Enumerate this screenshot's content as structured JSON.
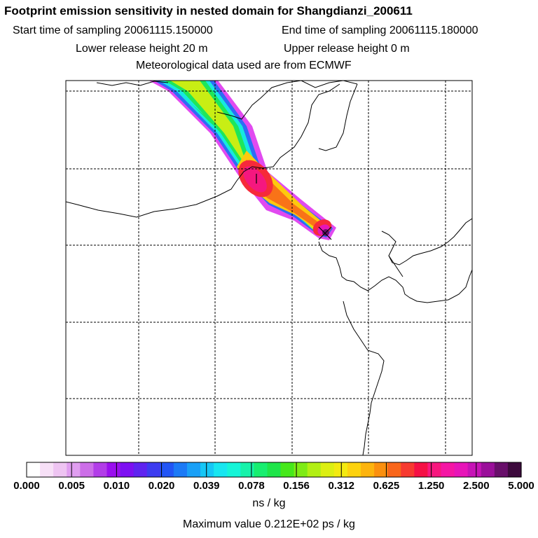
{
  "title": "Footprint emission sensitivity in nested domain for Shangdianzi_200611",
  "sampling": {
    "start": "Start time of sampling 20061115.150000",
    "end": "End time of sampling 20061115.180000"
  },
  "release": {
    "lower": "Lower release height   20 m",
    "upper": "Upper release height    0 m"
  },
  "met_data": "Meteorological data used are from ECMWF",
  "colorbar": {
    "ticks": [
      "0.000",
      "0.005",
      "0.010",
      "0.020",
      "0.039",
      "0.078",
      "0.156",
      "0.312",
      "0.625",
      "1.250",
      "2.500",
      "5.000"
    ],
    "colors": [
      "#ffffff",
      "#f7e0f7",
      "#eec4f2",
      "#e09ef0",
      "#cc6ee8",
      "#b23de8",
      "#9a0fee",
      "#7d10f2",
      "#5f24f0",
      "#3d3cf0",
      "#2255f5",
      "#1c7af6",
      "#1aa0f7",
      "#16c7f6",
      "#18e6f0",
      "#16f5d8",
      "#17f2aa",
      "#18ee70",
      "#1fe54a",
      "#46e81b",
      "#7eeb15",
      "#b2ef14",
      "#dcef12",
      "#f3ea10",
      "#fdd20e",
      "#fdb40e",
      "#fb900f",
      "#f9661b",
      "#f73a30",
      "#f51045",
      "#f7177e",
      "#f516a4",
      "#e715b8",
      "#c613b6",
      "#9a0f9a",
      "#680f6a",
      "#3d0a3d"
    ],
    "units": "ns / kg"
  },
  "max_value": "Maximum value  0.212E+02 ps / kg",
  "chart_data": {
    "type": "heatmap",
    "title": "Footprint emission sensitivity in nested domain for Shangdianzi_200611",
    "colorbar_levels": [
      0.0,
      0.005,
      0.01,
      0.02,
      0.039,
      0.078,
      0.156,
      0.312,
      0.625,
      1.25,
      2.5,
      5.0
    ],
    "colorbar_units": "ns / kg",
    "max_value": "0.212E+02 ps / kg",
    "grid": true
  }
}
